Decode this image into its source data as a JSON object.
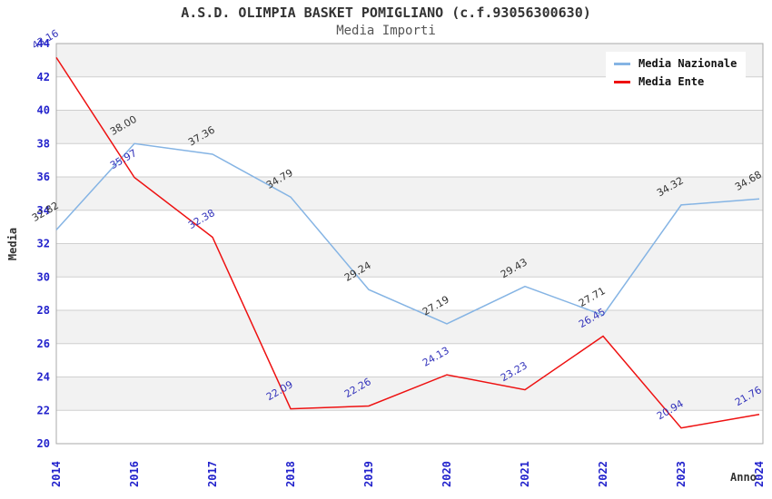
{
  "title": "A.S.D. OLIMPIA BASKET POMIGLIANO (c.f.93056300630)",
  "subtitle": "Media Importi",
  "chart_data": {
    "type": "line",
    "title": "A.S.D. OLIMPIA BASKET POMIGLIANO (c.f.93056300630)",
    "subtitle": "Media Importi",
    "xlabel": "Anno",
    "ylabel": "Media",
    "categories": [
      "2014",
      "2016",
      "2017",
      "2018",
      "2019",
      "2020",
      "2021",
      "2022",
      "2023",
      "2024"
    ],
    "series": [
      {
        "name": "Media Nazionale",
        "color": "#85b4e4",
        "label_color": "#333333",
        "values": [
          32.82,
          38.0,
          37.36,
          34.79,
          29.24,
          27.19,
          29.43,
          27.71,
          34.32,
          34.68
        ]
      },
      {
        "name": "Media Ente",
        "color": "#ee1111",
        "label_color": "#3333bb",
        "values": [
          43.16,
          35.97,
          32.38,
          22.09,
          22.26,
          24.13,
          23.23,
          26.45,
          20.94,
          21.76
        ]
      }
    ],
    "ylim": [
      20,
      44
    ],
    "ytick_step": 2,
    "grid": true,
    "band_fill": "alternating",
    "legend_position": "top-right",
    "label_decimals": 2
  },
  "colors": {
    "background": "#ffffff",
    "band": "#f2f2f2",
    "grid": "#cfcfcf",
    "plot_border": "#aaaaaa",
    "tick_label": "#2222cc",
    "title": "#333333",
    "subtitle": "#555555",
    "axis_name": "#333333",
    "legend_text": "#111111"
  }
}
